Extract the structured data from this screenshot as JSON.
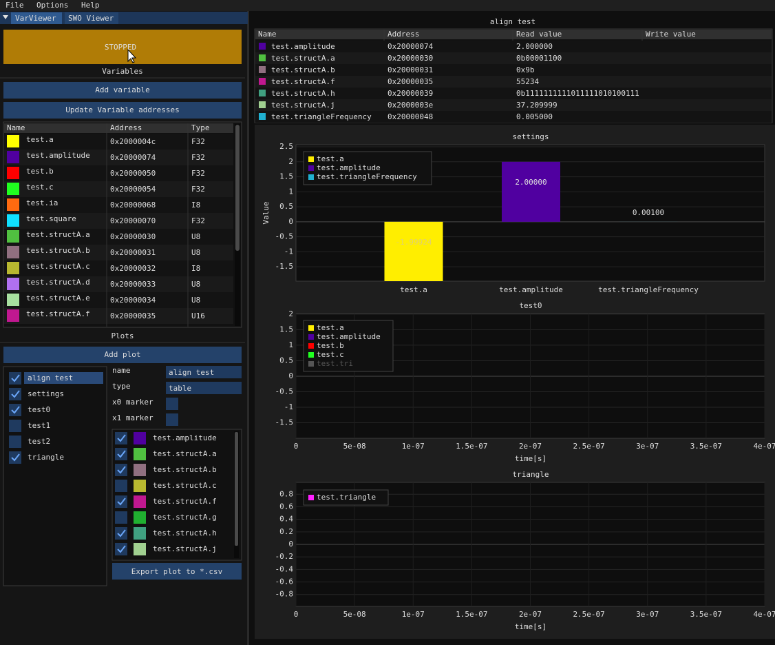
{
  "menu": [
    "File",
    "Options",
    "Help"
  ],
  "tabs": [
    "VarViewer",
    "SWO Viewer"
  ],
  "status_button": "STOPPED",
  "variables": {
    "header": "Variables",
    "add_button": "Add variable",
    "update_button": "Update Variable addresses",
    "columns": [
      "Name",
      "Address",
      "Type"
    ],
    "rows": [
      {
        "name": "test.a",
        "color": "#ffff00",
        "address": "0x2000004c",
        "type": "F32"
      },
      {
        "name": "test.amplitude",
        "color": "#5000a0",
        "address": "0x20000074",
        "type": "F32"
      },
      {
        "name": "test.b",
        "color": "#ff0000",
        "address": "0x20000050",
        "type": "F32"
      },
      {
        "name": "test.c",
        "color": "#20ff20",
        "address": "0x20000054",
        "type": "F32"
      },
      {
        "name": "test.ia",
        "color": "#ff6a10",
        "address": "0x20000068",
        "type": "I8"
      },
      {
        "name": "test.square",
        "color": "#10e0ff",
        "address": "0x20000070",
        "type": "F32"
      },
      {
        "name": "test.structA.a",
        "color": "#50c040",
        "address": "0x20000030",
        "type": "U8"
      },
      {
        "name": "test.structA.b",
        "color": "#907080",
        "address": "0x20000031",
        "type": "U8"
      },
      {
        "name": "test.structA.c",
        "color": "#b8b830",
        "address": "0x20000032",
        "type": "I8"
      },
      {
        "name": "test.structA.d",
        "color": "#b070f0",
        "address": "0x20000033",
        "type": "U8"
      },
      {
        "name": "test.structA.e",
        "color": "#a8e0a0",
        "address": "0x20000034",
        "type": "U8"
      },
      {
        "name": "test.structA.f",
        "color": "#c01890",
        "address": "0x20000035",
        "type": "U16"
      }
    ]
  },
  "plots_panel": {
    "header": "Plots",
    "add_button": "Add plot",
    "list": [
      {
        "name": "align test",
        "checked": true
      },
      {
        "name": "settings",
        "checked": true
      },
      {
        "name": "test0",
        "checked": true
      },
      {
        "name": "test1",
        "checked": false
      },
      {
        "name": "test2",
        "checked": false
      },
      {
        "name": "triangle",
        "checked": true
      }
    ],
    "settings": {
      "name_label": "name",
      "name_value": "align test",
      "type_label": "type",
      "type_value": "table",
      "x0_label": "x0 marker",
      "x1_label": "x1 marker"
    },
    "series": [
      {
        "name": "test.amplitude",
        "color": "#5000a0",
        "checked": true
      },
      {
        "name": "test.structA.a",
        "color": "#50c040",
        "checked": true
      },
      {
        "name": "test.structA.b",
        "color": "#907080",
        "checked": true
      },
      {
        "name": "test.structA.c",
        "color": "#b8b830",
        "checked": false
      },
      {
        "name": "test.structA.f",
        "color": "#c01890",
        "checked": true
      },
      {
        "name": "test.structA.g",
        "color": "#20b030",
        "checked": false
      },
      {
        "name": "test.structA.h",
        "color": "#40a080",
        "checked": true
      },
      {
        "name": "test.structA.j",
        "color": "#a0d090",
        "checked": true
      }
    ],
    "export_button": "Export plot to *.csv"
  },
  "table_view": {
    "title": "align test",
    "columns": [
      "Name",
      "Address",
      "Read value",
      "Write value"
    ],
    "rows": [
      {
        "name": "test.amplitude",
        "color": "#5000a0",
        "address": "0x20000074",
        "read_value": "2.000000"
      },
      {
        "name": "test.structA.a",
        "color": "#50c040",
        "address": "0x20000030",
        "read_value": "0b00001100"
      },
      {
        "name": "test.structA.b",
        "color": "#907080",
        "address": "0x20000031",
        "read_value": "0x9b"
      },
      {
        "name": "test.structA.f",
        "color": "#c01890",
        "address": "0x20000035",
        "read_value": "55234"
      },
      {
        "name": "test.structA.h",
        "color": "#40a080",
        "address": "0x20000039",
        "read_value": "0b1111111111011111010100111"
      },
      {
        "name": "test.structA.j",
        "color": "#a0d090",
        "address": "0x2000003e",
        "read_value": "37.209999"
      },
      {
        "name": "test.triangleFrequency",
        "color": "#20b0d0",
        "address": "0x20000048",
        "read_value": "0.005000"
      }
    ]
  },
  "charts": [
    {
      "type": "bar",
      "title": "settings",
      "ylabel": "Value",
      "categories": [
        "test.a",
        "test.amplitude",
        "test.triangleFrequency"
      ],
      "values": [
        -1.99924,
        2,
        0.001
      ],
      "value_labels": [
        "-1.99924",
        "2.00000",
        "0.00100"
      ],
      "colors": [
        "#ffee00",
        "#5000a0",
        "#20b0d0"
      ],
      "ylim": [
        -1.98,
        2.57
      ],
      "yticks": [
        2.5,
        2,
        1.5,
        1,
        0.5,
        0,
        -0.5,
        -1,
        -1.5
      ],
      "grid": true,
      "legend": "top-left"
    },
    {
      "type": "line",
      "title": "test0",
      "xlabel": "time[s]",
      "series": [
        {
          "name": "test.a",
          "color": "#ffee00"
        },
        {
          "name": "test.amplitude",
          "color": "#5000a0"
        },
        {
          "name": "test.b",
          "color": "#ff0000"
        },
        {
          "name": "test.c",
          "color": "#20ff20"
        },
        {
          "name": "test.tri",
          "color": "#555555",
          "hidden": true
        }
      ],
      "xlim": [
        0,
        4e-07
      ],
      "xticks": [
        0,
        {
          "value": 5e-08,
          "label": "5e-08"
        },
        {
          "value": 1e-07,
          "label": "1e-07"
        },
        {
          "value": 1.5e-07,
          "label": "1.5e-07"
        },
        {
          "value": 2e-07,
          "label": "2e-07"
        },
        {
          "value": 2.5e-07,
          "label": "2.5e-07"
        },
        {
          "value": 3e-07,
          "label": "3e-07"
        },
        {
          "value": 3.5e-07,
          "label": "3.5e-07"
        },
        {
          "value": 4e-07,
          "label": "4e-07"
        }
      ],
      "ylim": [
        -2,
        2.02
      ],
      "yticks": [
        2,
        1.5,
        1,
        0.5,
        0,
        -0.5,
        -1,
        -1.5
      ],
      "grid": true,
      "legend": "top-left"
    },
    {
      "type": "line",
      "title": "triangle",
      "xlabel": "time[s]",
      "series": [
        {
          "name": "test.triangle",
          "color": "#ff20ff"
        }
      ],
      "xlim": [
        0,
        4e-07
      ],
      "xticks": [
        0,
        {
          "value": 5e-08,
          "label": "5e-08"
        },
        {
          "value": 1e-07,
          "label": "1e-07"
        },
        {
          "value": 1.5e-07,
          "label": "1.5e-07"
        },
        {
          "value": 2e-07,
          "label": "2e-07"
        },
        {
          "value": 2.5e-07,
          "label": "2.5e-07"
        },
        {
          "value": 3e-07,
          "label": "3e-07"
        },
        {
          "value": 3.5e-07,
          "label": "3.5e-07"
        },
        {
          "value": 4e-07,
          "label": "4e-07"
        }
      ],
      "ylim": [
        -0.99,
        0.99
      ],
      "yticks": [
        0.8,
        0.6,
        0.4,
        0.2,
        0,
        -0.2,
        -0.4,
        -0.6,
        -0.8
      ],
      "grid": true,
      "legend": "top-left"
    }
  ]
}
